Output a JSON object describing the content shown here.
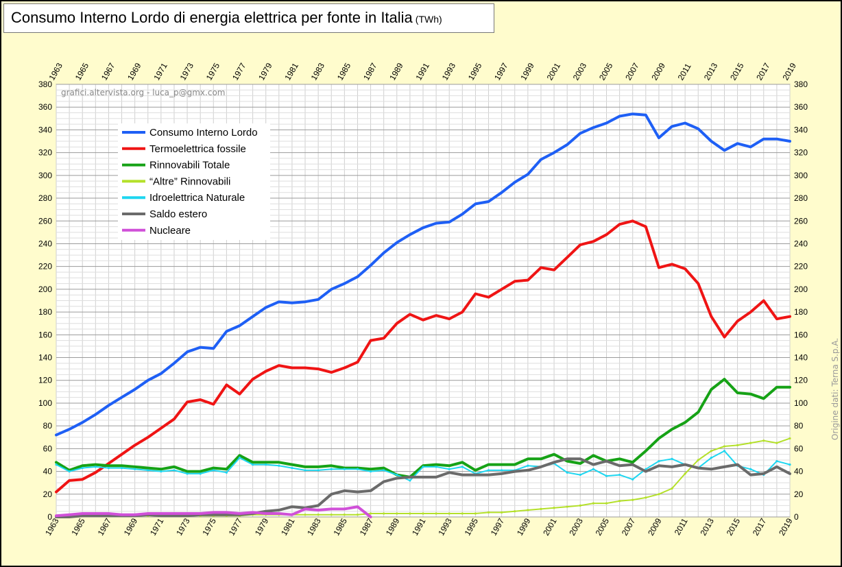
{
  "title": "Consumo Interno Lordo di energia elettrica per fonte in Italia",
  "title_unit": "(TWh)",
  "credit": "grafici.altervista.org - luca_p@gmx.com",
  "source": "Origine dati: Terna S.p.A.",
  "chart_data": {
    "type": "line",
    "x": [
      1963,
      1964,
      1965,
      1966,
      1967,
      1968,
      1969,
      1970,
      1971,
      1972,
      1973,
      1974,
      1975,
      1976,
      1977,
      1978,
      1979,
      1980,
      1981,
      1982,
      1983,
      1984,
      1985,
      1986,
      1987,
      1988,
      1989,
      1990,
      1991,
      1992,
      1993,
      1994,
      1995,
      1996,
      1997,
      1998,
      1999,
      2000,
      2001,
      2002,
      2003,
      2004,
      2005,
      2006,
      2007,
      2008,
      2009,
      2010,
      2011,
      2012,
      2013,
      2014,
      2015,
      2016,
      2017,
      2018,
      2019
    ],
    "x_tick_labels": [
      "1963",
      "1965",
      "1967",
      "1969",
      "1971",
      "1973",
      "1975",
      "1977",
      "1979",
      "1981",
      "1983",
      "1985",
      "1987",
      "1989",
      "1991",
      "1993",
      "1995",
      "1997",
      "1999",
      "2001",
      "2003",
      "2005",
      "2007",
      "2009",
      "2011",
      "2013",
      "2015",
      "2017",
      "2019"
    ],
    "ylim": [
      0,
      380
    ],
    "y_ticks": [
      0,
      20,
      40,
      60,
      80,
      100,
      120,
      140,
      160,
      180,
      200,
      220,
      240,
      260,
      280,
      300,
      320,
      340,
      360,
      380
    ],
    "grid": true,
    "legend_position": "top-left",
    "series": [
      {
        "name": "Consumo Interno Lordo",
        "color": "#1e5ff5",
        "width": 4,
        "values": [
          72,
          77,
          83,
          90,
          98,
          105,
          112,
          120,
          126,
          135,
          145,
          149,
          148,
          163,
          168,
          176,
          184,
          189,
          188,
          189,
          191,
          200,
          205,
          211,
          221,
          232,
          241,
          248,
          254,
          258,
          259,
          266,
          275,
          277,
          285,
          294,
          301,
          314,
          320,
          327,
          337,
          342,
          346,
          352,
          354,
          353,
          333,
          343,
          346,
          341,
          330,
          322,
          328,
          325,
          332,
          332,
          330
        ]
      },
      {
        "name": "Termoelettrica fossile",
        "color": "#ef1414",
        "width": 4,
        "values": [
          22,
          32,
          33,
          39,
          47,
          55,
          63,
          70,
          78,
          86,
          101,
          103,
          99,
          116,
          108,
          121,
          128,
          133,
          131,
          131,
          130,
          127,
          131,
          136,
          155,
          157,
          170,
          178,
          173,
          177,
          174,
          180,
          196,
          193,
          200,
          207,
          208,
          219,
          217,
          228,
          239,
          242,
          248,
          257,
          260,
          255,
          219,
          222,
          218,
          205,
          176,
          158,
          172,
          180,
          190,
          174,
          176
        ]
      },
      {
        "name": "Rinnovabili Totale",
        "color": "#16a216",
        "width": 4,
        "values": [
          48,
          41,
          45,
          46,
          45,
          45,
          44,
          43,
          42,
          44,
          40,
          40,
          43,
          42,
          54,
          48,
          48,
          48,
          46,
          44,
          44,
          45,
          43,
          43,
          42,
          43,
          37,
          35,
          45,
          46,
          45,
          48,
          41,
          46,
          46,
          46,
          51,
          51,
          55,
          49,
          47,
          54,
          49,
          51,
          48,
          58,
          69,
          77,
          83,
          92,
          112,
          121,
          109,
          108,
          104,
          114,
          114
        ]
      },
      {
        "name": "“Altre” Rinnovabili",
        "color": "#b4e02a",
        "width": 2,
        "values": [
          1,
          1,
          1,
          1,
          1,
          1,
          1,
          1,
          1,
          1,
          1,
          1,
          1,
          1,
          1,
          2,
          2,
          2,
          2,
          2,
          2,
          2,
          2,
          2,
          3,
          3,
          3,
          3,
          3,
          3,
          3,
          3,
          3,
          4,
          4,
          5,
          6,
          7,
          8,
          9,
          10,
          12,
          12,
          14,
          15,
          17,
          20,
          25,
          38,
          50,
          58,
          62,
          63,
          65,
          67,
          65,
          69
        ]
      },
      {
        "name": "Idroelettrica Naturale",
        "color": "#1ed6f0",
        "width": 2,
        "values": [
          46,
          40,
          43,
          44,
          43,
          43,
          42,
          41,
          40,
          41,
          38,
          38,
          41,
          39,
          52,
          46,
          46,
          45,
          43,
          41,
          41,
          42,
          42,
          42,
          40,
          41,
          37,
          32,
          44,
          44,
          42,
          44,
          38,
          41,
          41,
          41,
          45,
          44,
          47,
          39,
          37,
          42,
          36,
          37,
          33,
          42,
          49,
          51,
          46,
          43,
          52,
          58,
          45,
          42,
          37,
          49,
          46
        ]
      },
      {
        "name": "Saldo estero",
        "color": "#6a6a6a",
        "width": 4,
        "values": [
          0,
          0,
          1,
          1,
          1,
          1,
          1,
          2,
          1,
          1,
          1,
          2,
          2,
          2,
          2,
          3,
          5,
          6,
          9,
          8,
          10,
          20,
          23,
          22,
          23,
          31,
          34,
          35,
          35,
          35,
          39,
          37,
          37,
          37,
          38,
          40,
          41,
          44,
          48,
          51,
          51,
          46,
          49,
          45,
          46,
          40,
          45,
          44,
          46,
          43,
          42,
          44,
          46,
          37,
          38,
          44,
          38
        ]
      },
      {
        "name": "Nucleare",
        "color": "#d050d8",
        "width": 4,
        "values": [
          1,
          2,
          3,
          3,
          3,
          2,
          2,
          3,
          3,
          3,
          3,
          3,
          4,
          4,
          3,
          4,
          3,
          3,
          2,
          7,
          6,
          7,
          7,
          9,
          0,
          null,
          null,
          null,
          null,
          null,
          null,
          null,
          null,
          null,
          null,
          null,
          null,
          null,
          null,
          null,
          null,
          null,
          null,
          null,
          null,
          null,
          null,
          null,
          null,
          null,
          null,
          null,
          null,
          null,
          null,
          null,
          null
        ]
      }
    ]
  }
}
